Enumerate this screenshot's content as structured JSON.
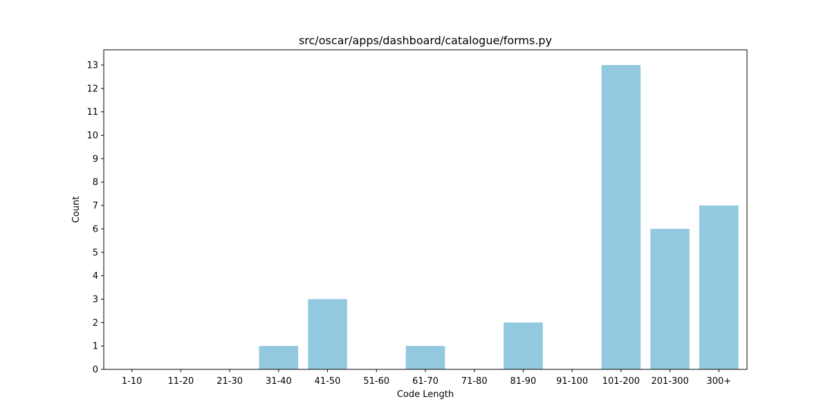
{
  "chart_data": {
    "type": "bar",
    "title": "src/oscar/apps/dashboard/catalogue/forms.py",
    "xlabel": "Code Length",
    "ylabel": "Count",
    "categories": [
      "1-10",
      "11-20",
      "21-30",
      "31-40",
      "41-50",
      "51-60",
      "61-70",
      "71-80",
      "81-90",
      "91-100",
      "101-200",
      "201-300",
      "300+"
    ],
    "values": [
      0,
      0,
      0,
      1,
      3,
      0,
      1,
      0,
      2,
      0,
      13,
      6,
      7
    ],
    "ylim": [
      0,
      13.65
    ],
    "yticks": [
      "0",
      "1",
      "2",
      "3",
      "4",
      "5",
      "6",
      "7",
      "8",
      "9",
      "10",
      "11",
      "12",
      "13"
    ],
    "bar_color": "#92c9df",
    "grid": false,
    "legend": false
  }
}
